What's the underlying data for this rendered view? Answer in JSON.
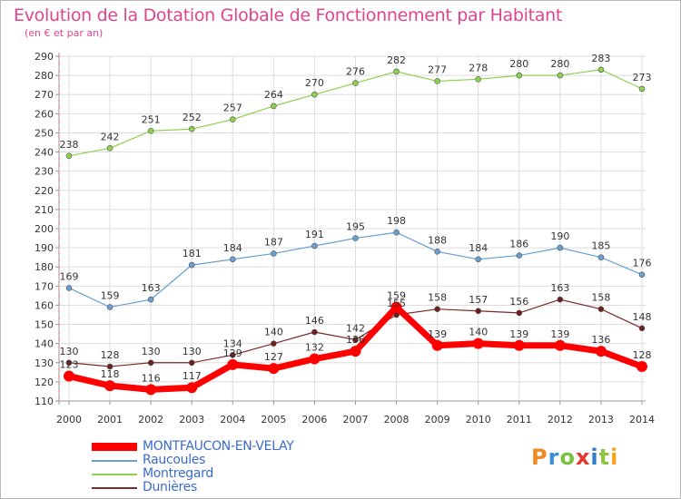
{
  "title": "Evolution de la Dotation Globale de Fonctionnement par Habitant",
  "subtitle": "(en € et par an)",
  "brand": {
    "letters": [
      "P",
      "r",
      "o",
      "x",
      "i",
      "t",
      "i"
    ],
    "colors": [
      "#f08a24",
      "#3b8fd6",
      "#7cc242",
      "#e8362d",
      "#2e7ec9",
      "#8cc63f",
      "#f5a31a"
    ]
  },
  "chart_data": {
    "type": "line",
    "x": [
      "2000",
      "2001",
      "2002",
      "2003",
      "2004",
      "2005",
      "2006",
      "2007",
      "2008",
      "2009",
      "2010",
      "2011",
      "2012",
      "2013",
      "2014"
    ],
    "ylim": [
      110,
      290
    ],
    "yticks": [
      110,
      120,
      130,
      140,
      150,
      160,
      170,
      180,
      190,
      200,
      210,
      220,
      230,
      240,
      250,
      260,
      270,
      280,
      290
    ],
    "grid": true,
    "legend_position": "bottom-left",
    "series": [
      {
        "name": "MONTFAUCON-EN-VELAY",
        "color": "#ff0000",
        "marker": "#ff0000",
        "width": 7,
        "values": [
          123,
          118,
          116,
          117,
          129,
          127,
          132,
          136,
          159,
          139,
          140,
          139,
          139,
          136,
          128
        ]
      },
      {
        "name": "Raucoules",
        "color": "#6a9fd1",
        "marker": "#6a9fd1",
        "width": 1.2,
        "values": [
          169,
          159,
          163,
          181,
          184,
          187,
          191,
          195,
          198,
          188,
          184,
          186,
          190,
          185,
          176
        ]
      },
      {
        "name": "Montregard",
        "color": "#8dd14f",
        "marker": "#8dd14f",
        "width": 1.2,
        "values": [
          238,
          242,
          251,
          252,
          257,
          264,
          270,
          276,
          282,
          277,
          278,
          280,
          280,
          283,
          273
        ]
      },
      {
        "name": "Dunières",
        "color": "#7a2a2a",
        "marker": "#6b1f1f",
        "width": 1.2,
        "values": [
          130,
          128,
          130,
          130,
          134,
          140,
          146,
          142,
          155,
          158,
          157,
          156,
          163,
          158,
          148
        ]
      }
    ]
  }
}
